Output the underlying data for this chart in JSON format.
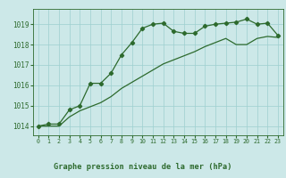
{
  "line1_x": [
    0,
    1,
    2,
    3,
    4,
    5,
    6,
    7,
    8,
    9,
    10,
    11,
    12,
    13,
    14,
    15,
    16,
    17,
    18,
    19,
    20,
    21,
    22,
    23
  ],
  "line1_y": [
    1014.0,
    1014.1,
    1014.1,
    1014.8,
    1015.0,
    1016.1,
    1016.1,
    1016.6,
    1017.5,
    1018.1,
    1018.8,
    1019.0,
    1019.05,
    1018.65,
    1018.55,
    1018.55,
    1018.9,
    1019.0,
    1019.05,
    1019.1,
    1019.25,
    1019.0,
    1019.05,
    1018.45
  ],
  "line2_x": [
    0,
    1,
    2,
    3,
    4,
    5,
    6,
    7,
    8,
    9,
    10,
    11,
    12,
    13,
    14,
    15,
    16,
    17,
    18,
    19,
    20,
    21,
    22,
    23
  ],
  "line2_y": [
    1014.0,
    1014.0,
    1014.0,
    1014.45,
    1014.75,
    1014.95,
    1015.15,
    1015.45,
    1015.85,
    1016.15,
    1016.45,
    1016.75,
    1017.05,
    1017.25,
    1017.45,
    1017.65,
    1017.9,
    1018.1,
    1018.3,
    1018.0,
    1018.0,
    1018.3,
    1018.4,
    1018.35
  ],
  "line_color": "#2d6a2d",
  "bg_color": "#cce8e8",
  "grid_color": "#9ecfcf",
  "tick_color": "#2d6a2d",
  "xlabel": "Graphe pression niveau de la mer (hPa)",
  "ylim_min": 1013.55,
  "ylim_max": 1019.75,
  "yticks": [
    1014,
    1015,
    1016,
    1017,
    1018,
    1019
  ],
  "xticks": [
    0,
    1,
    2,
    3,
    4,
    5,
    6,
    7,
    8,
    9,
    10,
    11,
    12,
    13,
    14,
    15,
    16,
    17,
    18,
    19,
    20,
    21,
    22,
    23
  ]
}
